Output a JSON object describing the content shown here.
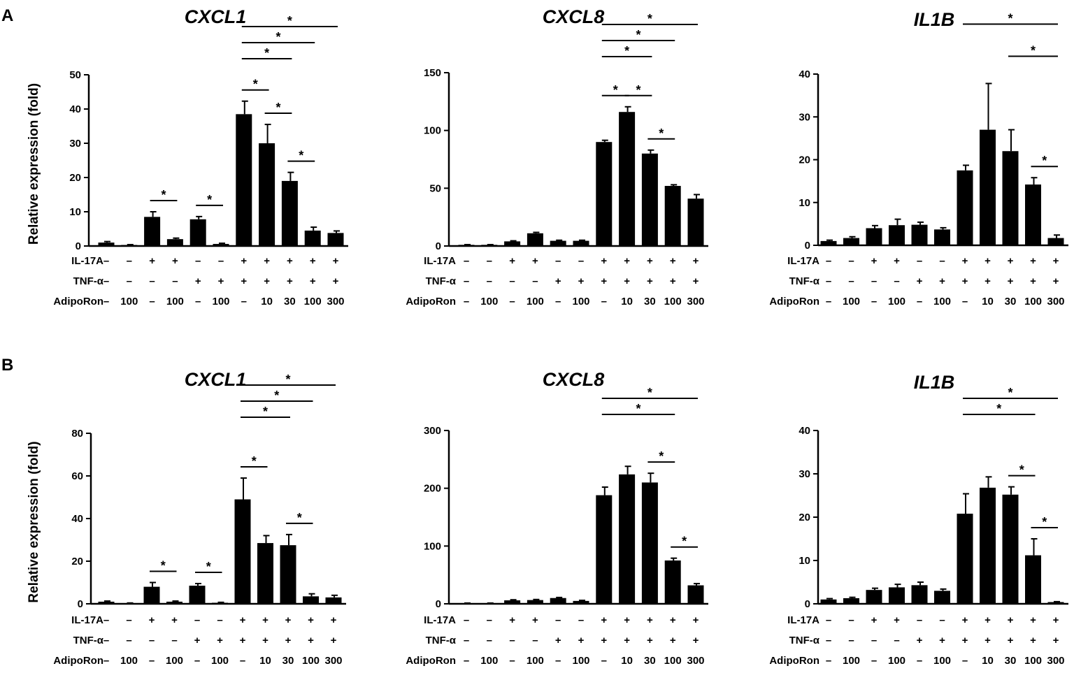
{
  "figure": {
    "ylabel": "Relative expression (fold)",
    "treatment_labels": [
      "IL-17A",
      "TNF-α",
      "AdipoRon"
    ],
    "treatments": {
      "IL-17A": [
        "–",
        "–",
        "+",
        "+",
        "–",
        "–",
        "+",
        "+",
        "+",
        "+",
        "+"
      ],
      "TNF-α": [
        "–",
        "–",
        "–",
        "–",
        "+",
        "+",
        "+",
        "+",
        "+",
        "+",
        "+"
      ],
      "AdipoRon": [
        "–",
        "100",
        "–",
        "100",
        "–",
        "100",
        "–",
        "10",
        "30",
        "100",
        "300"
      ]
    }
  },
  "panels": [
    {
      "letter": "A"
    },
    {
      "letter": "B"
    }
  ],
  "chart_data": [
    {
      "type": "bar",
      "panel": "A",
      "title": "CXCL1",
      "ylim": [
        0,
        50
      ],
      "yticks": [
        0,
        10,
        20,
        30,
        40,
        50
      ],
      "values": [
        1.0,
        0.3,
        8.5,
        2.0,
        7.8,
        0.6,
        38.5,
        30.0,
        19.0,
        4.5,
        3.8
      ],
      "errors": [
        0.3,
        0.1,
        1.5,
        0.3,
        0.8,
        0.2,
        3.8,
        5.5,
        2.5,
        1.0,
        0.6
      ],
      "significance": [
        {
          "from": 2,
          "to": 3,
          "level": 1,
          "label": "*"
        },
        {
          "from": 4,
          "to": 5,
          "level": 1,
          "label": "*"
        },
        {
          "from": 6,
          "to": 7,
          "level": 1,
          "label": "*"
        },
        {
          "from": 7,
          "to": 8,
          "level": 1,
          "label": "*"
        },
        {
          "from": 8,
          "to": 9,
          "level": 1,
          "label": "*"
        },
        {
          "from": 6,
          "to": 8,
          "level": 2,
          "label": "*"
        },
        {
          "from": 6,
          "to": 9,
          "level": 3,
          "label": "*"
        },
        {
          "from": 6,
          "to": 10,
          "level": 4,
          "label": "*"
        }
      ]
    },
    {
      "type": "bar",
      "panel": "A",
      "title": "CXCL8",
      "ylim": [
        0,
        150
      ],
      "yticks": [
        0,
        50,
        100,
        150
      ],
      "values": [
        1.0,
        1.0,
        4.0,
        11.0,
        4.5,
        4.5,
        90.0,
        116.0,
        80.0,
        52.0,
        41.0
      ],
      "errors": [
        0.2,
        0.2,
        0.5,
        0.8,
        0.5,
        0.5,
        1.5,
        4.5,
        3.0,
        1.0,
        3.5
      ],
      "significance": [
        {
          "from": 6,
          "to": 7,
          "level": 1,
          "label": "*"
        },
        {
          "from": 7,
          "to": 8,
          "level": 1,
          "label": "*"
        },
        {
          "from": 8,
          "to": 9,
          "level": 1,
          "label": "*"
        },
        {
          "from": 6,
          "to": 8,
          "level": 2,
          "label": "*"
        },
        {
          "from": 6,
          "to": 9,
          "level": 3,
          "label": "*"
        },
        {
          "from": 6,
          "to": 10,
          "level": 4,
          "label": "*"
        }
      ]
    },
    {
      "type": "bar",
      "panel": "A",
      "title": "IL1B",
      "ylim": [
        0,
        40
      ],
      "yticks": [
        0,
        10,
        20,
        30,
        40
      ],
      "values": [
        1.0,
        1.7,
        4.0,
        4.7,
        4.8,
        3.7,
        17.5,
        27.0,
        22.0,
        14.2,
        1.7
      ],
      "errors": [
        0.2,
        0.3,
        0.6,
        1.4,
        0.6,
        0.4,
        1.2,
        10.8,
        5.0,
        1.6,
        0.7
      ],
      "significance": [
        {
          "from": 9,
          "to": 10,
          "level": 1,
          "label": "*"
        },
        {
          "from": 8,
          "to": 10,
          "level": 2,
          "label": "*"
        },
        {
          "from": 6,
          "to": 10,
          "level": 4,
          "label": "*"
        }
      ]
    },
    {
      "type": "bar",
      "panel": "B",
      "title": "CXCL1",
      "ylim": [
        0,
        80
      ],
      "yticks": [
        0,
        20,
        40,
        60,
        80
      ],
      "values": [
        1.0,
        0.3,
        8.0,
        1.0,
        8.5,
        0.5,
        49.0,
        28.5,
        27.5,
        3.5,
        3.0
      ],
      "errors": [
        0.3,
        0.1,
        2.0,
        0.3,
        1.0,
        0.2,
        10.0,
        3.5,
        5.0,
        1.2,
        1.0
      ],
      "significance": [
        {
          "from": 2,
          "to": 3,
          "level": 1,
          "label": "*"
        },
        {
          "from": 4,
          "to": 5,
          "level": 1,
          "label": "*"
        },
        {
          "from": 6,
          "to": 7,
          "level": 1,
          "label": "*"
        },
        {
          "from": 8,
          "to": 9,
          "level": 1,
          "label": "*"
        },
        {
          "from": 6,
          "to": 8,
          "level": 2,
          "label": "*"
        },
        {
          "from": 6,
          "to": 9,
          "level": 3,
          "label": "*"
        },
        {
          "from": 6,
          "to": 10,
          "level": 4,
          "label": "*"
        }
      ]
    },
    {
      "type": "bar",
      "panel": "B",
      "title": "CXCL8",
      "ylim": [
        0,
        300
      ],
      "yticks": [
        0,
        100,
        200,
        300
      ],
      "values": [
        1.0,
        1.0,
        6.0,
        6.5,
        10.0,
        5.0,
        188.0,
        224.0,
        210.0,
        75.0,
        32.0
      ],
      "errors": [
        0.3,
        0.3,
        1.0,
        1.0,
        1.0,
        1.0,
        14.0,
        14.0,
        16.0,
        4.0,
        3.0
      ],
      "significance": [
        {
          "from": 8,
          "to": 9,
          "level": 1,
          "label": "*"
        },
        {
          "from": 9,
          "to": 10,
          "level": 1,
          "label": "*"
        },
        {
          "from": 6,
          "to": 9,
          "level": 2,
          "label": "*"
        },
        {
          "from": 6,
          "to": 10,
          "level": 3,
          "label": "*"
        }
      ]
    },
    {
      "type": "bar",
      "panel": "B",
      "title": "IL1B",
      "ylim": [
        0,
        40
      ],
      "yticks": [
        0,
        10,
        20,
        30,
        40
      ],
      "values": [
        1.0,
        1.3,
        3.2,
        3.8,
        4.3,
        3.0,
        20.8,
        26.8,
        25.2,
        11.2,
        0.4
      ],
      "errors": [
        0.2,
        0.2,
        0.4,
        0.7,
        0.7,
        0.4,
        4.6,
        2.5,
        1.8,
        3.8,
        0.1
      ],
      "significance": [
        {
          "from": 8,
          "to": 9,
          "level": 1,
          "label": "*"
        },
        {
          "from": 9,
          "to": 10,
          "level": 1,
          "label": "*"
        },
        {
          "from": 6,
          "to": 9,
          "level": 2,
          "label": "*"
        },
        {
          "from": 6,
          "to": 10,
          "level": 3,
          "label": "*"
        }
      ]
    }
  ]
}
